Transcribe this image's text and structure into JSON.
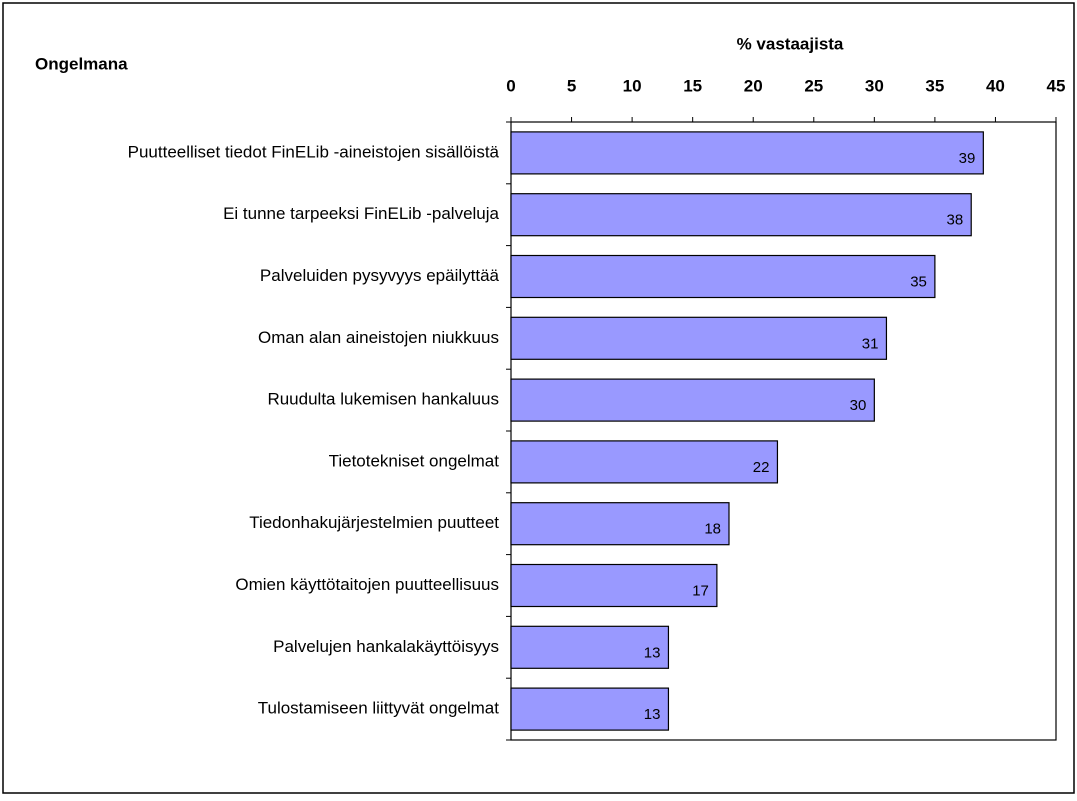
{
  "chart_data": {
    "type": "barh",
    "title": "% vastaajista",
    "ylabel": "Ongelmana",
    "categories": [
      "Puutteelliset tiedot FinELib -aineistojen sisällöistä",
      "Ei tunne tarpeeksi FinELib -palveluja",
      "Palveluiden pysyvyys epäilyttää",
      "Oman alan aineistojen niukkuus",
      "Ruudulta lukemisen hankaluus",
      "Tietotekniset ongelmat",
      "Tiedonhakujärjestelmien puutteet",
      "Omien käyttötaitojen puutteellisuus",
      "Palvelujen hankalakäyttöisyys",
      "Tulostamiseen liittyvät ongelmat"
    ],
    "values": [
      39,
      38,
      35,
      31,
      30,
      22,
      18,
      17,
      13,
      13
    ],
    "color": "#9999ff",
    "xlim": [
      0,
      45
    ],
    "xticks": [
      0,
      5,
      10,
      15,
      20,
      25,
      30,
      35,
      40,
      45
    ],
    "data_labels": true
  }
}
